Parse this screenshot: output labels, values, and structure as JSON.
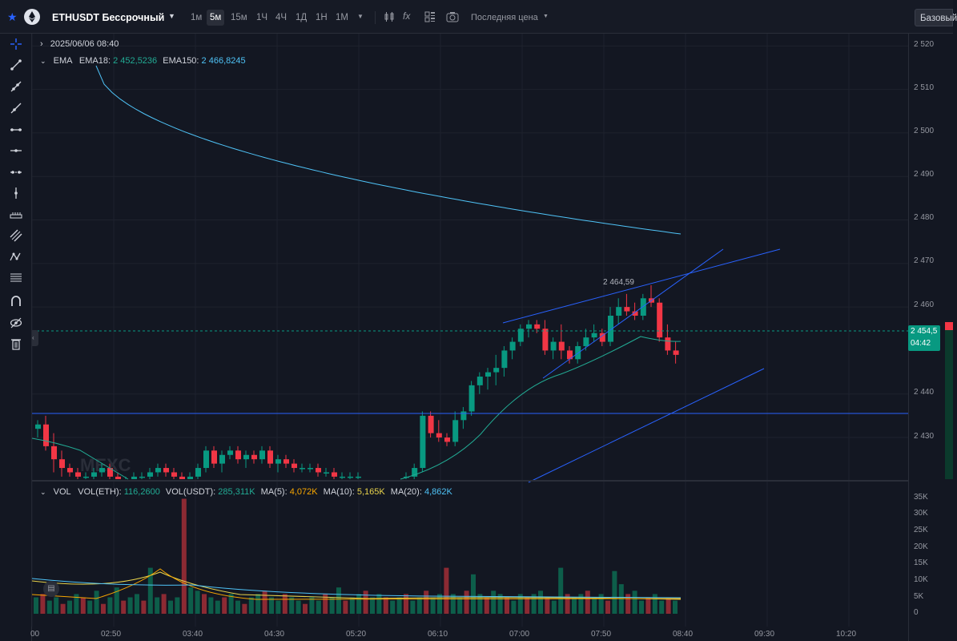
{
  "header": {
    "symbol": "ETHUSDT Бессрочный",
    "timeframes": [
      "1м",
      "5м",
      "15м",
      "1Ч",
      "4Ч",
      "1Д",
      "1Н",
      "1М"
    ],
    "active_timeframe": "5м",
    "price_type": "Последняя цена",
    "base_button": "Базовый"
  },
  "legend": {
    "datetime": "2025/06/06 08:40",
    "ema_title": "EMA",
    "ema18_label": "EMA18:",
    "ema18_value": "2 452,5236",
    "ema150_label": "EMA150:",
    "ema150_value": "2 466,8245",
    "vol_title": "VOL",
    "vol_eth_label": "VOL(ETH):",
    "vol_eth_value": "116,2600",
    "vol_usdt_label": "VOL(USDT):",
    "vol_usdt_value": "285,311K",
    "ma5_label": "MA(5):",
    "ma5_value": "4,072K",
    "ma10_label": "MA(10):",
    "ma10_value": "5,165K",
    "ma20_label": "MA(20):",
    "ma20_value": "4,862K"
  },
  "current_price": {
    "value": "2 454,5",
    "countdown": "04:42"
  },
  "high_annotation": "2 464,59",
  "watermark": "MEXC",
  "price_axis": [
    "2 520",
    "2 510",
    "2 500",
    "2 490",
    "2 480",
    "2 470",
    "2 460",
    "2 440",
    "2 430"
  ],
  "volume_axis": [
    "35K",
    "30K",
    "25K",
    "20K",
    "15K",
    "10K",
    "5K",
    "0"
  ],
  "time_axis": [
    "00",
    "02:50",
    "03:40",
    "04:30",
    "05:20",
    "06:10",
    "07:00",
    "07:50",
    "08:40",
    "09:30",
    "10:20"
  ],
  "colors": {
    "up": "#089981",
    "down": "#f23645",
    "ema18": "#22ab94",
    "ema150": "#4fc3f7",
    "trend": "#2962ff"
  }
}
